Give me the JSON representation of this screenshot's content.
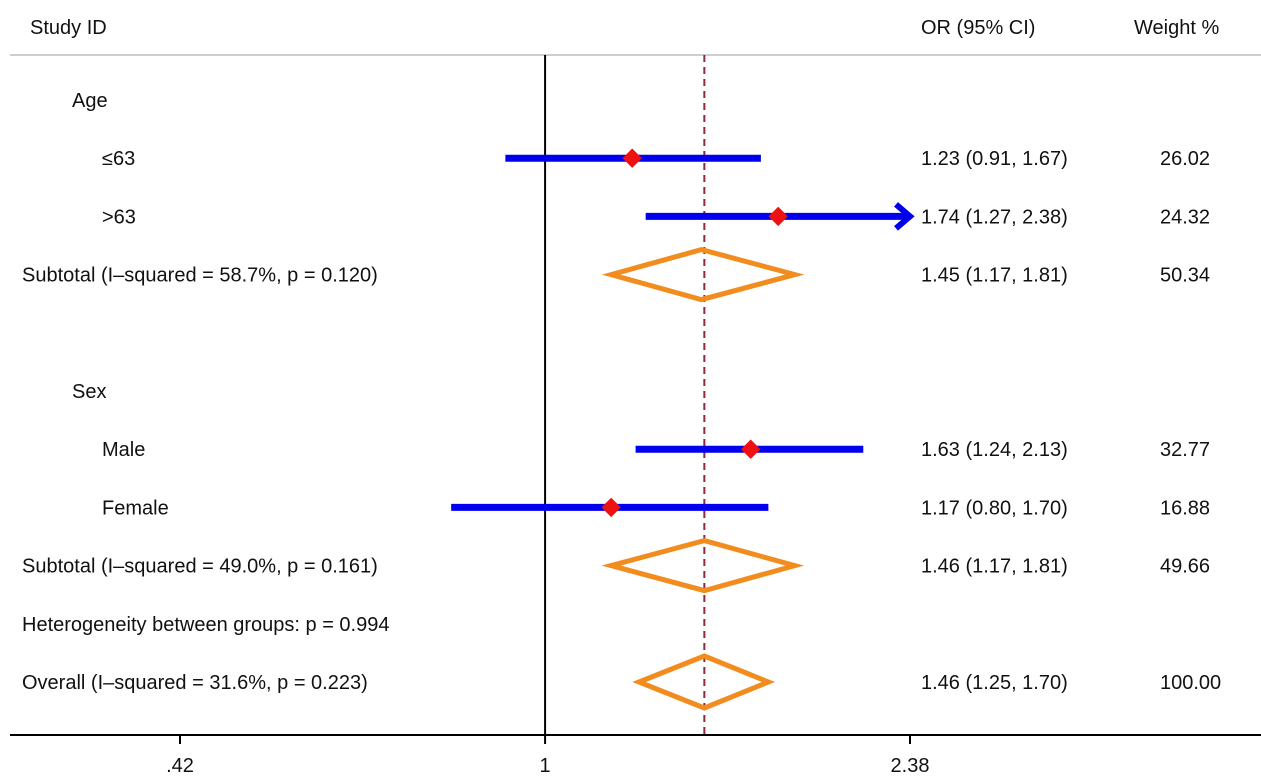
{
  "header": {
    "study_label": "Study  ID",
    "or_label": "OR (95% CI)",
    "weight_label": "Weight  %"
  },
  "chart_data": {
    "type": "forest",
    "scale": "log",
    "xlim": [
      0.42,
      2.38
    ],
    "null_line": 1,
    "overall_line": 1.46,
    "xticks": [
      {
        "value": 0.42,
        "label": ".42"
      },
      {
        "value": 1,
        "label": "1"
      },
      {
        "value": 2.38,
        "label": "2.38"
      }
    ],
    "rows": [
      {
        "kind": "group",
        "label": "Age",
        "indent": 2
      },
      {
        "kind": "study",
        "label": "≤63",
        "indent": 3,
        "or": 1.23,
        "lo": 0.91,
        "hi": 1.67,
        "ci_text": "1.23 (0.91, 1.67)",
        "weight": "26.02",
        "arrow": false
      },
      {
        "kind": "study",
        "label": ">63",
        "indent": 3,
        "or": 1.74,
        "lo": 1.27,
        "hi": 2.38,
        "ci_text": "1.74 (1.27, 2.38)",
        "weight": "24.32",
        "arrow": true
      },
      {
        "kind": "subtotal",
        "label": "Subtotal  (I–squared = 58.7%, p = 0.120)",
        "indent": 1,
        "or": 1.45,
        "lo": 1.17,
        "hi": 1.81,
        "ci_text": "1.45 (1.17, 1.81)",
        "weight": "50.34"
      },
      {
        "kind": "spacer"
      },
      {
        "kind": "group",
        "label": "Sex",
        "indent": 2
      },
      {
        "kind": "study",
        "label": "Male",
        "indent": 3,
        "or": 1.63,
        "lo": 1.24,
        "hi": 2.13,
        "ci_text": "1.63 (1.24, 2.13)",
        "weight": "32.77",
        "arrow": false
      },
      {
        "kind": "study",
        "label": "Female",
        "indent": 3,
        "or": 1.17,
        "lo": 0.8,
        "hi": 1.7,
        "ci_text": "1.17 (0.80, 1.70)",
        "weight": "16.88",
        "arrow": false
      },
      {
        "kind": "subtotal",
        "label": "Subtotal  (I–squared = 49.0%, p = 0.161)",
        "indent": 1,
        "or": 1.46,
        "lo": 1.17,
        "hi": 1.81,
        "ci_text": "1.46 (1.17, 1.81)",
        "weight": "49.66"
      },
      {
        "kind": "note",
        "label": "Heterogeneity between groups: p = 0.994",
        "indent": 1
      },
      {
        "kind": "overall",
        "label": "Overall  (I–squared = 31.6%, p = 0.223)",
        "indent": 1,
        "or": 1.46,
        "lo": 1.25,
        "hi": 1.7,
        "ci_text": "1.46 (1.25, 1.70)",
        "weight": "100.00"
      }
    ],
    "colors": {
      "ci_line": "#0000ee",
      "point": "#ee1111",
      "diamond": "#f28c1e",
      "axis": "#000000",
      "overall_line": "#8b2a3a",
      "header_rule": "#bdbdbd"
    }
  }
}
